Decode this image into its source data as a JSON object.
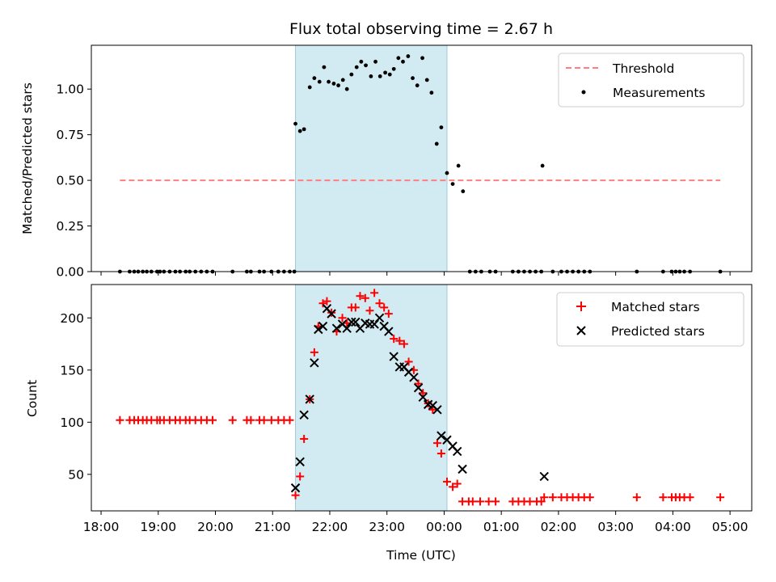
{
  "chart_data": [
    {
      "type": "scatter",
      "title": "Flux total observing time = 2.67 h",
      "xlabel": "",
      "ylabel": "Matched/Predicted stars",
      "x_ticks": [
        "18:00",
        "19:00",
        "20:00",
        "21:00",
        "22:00",
        "23:00",
        "00:00",
        "01:00",
        "02:00",
        "03:00",
        "04:00",
        "05:00"
      ],
      "y_ticks": [
        "0.00",
        "0.25",
        "0.50",
        "0.75",
        "1.00"
      ],
      "ylim": [
        0,
        1.24
      ],
      "xlim_hours": [
        17.83,
        29.38
      ],
      "grid": false,
      "legend_position": "top-right",
      "shaded_interval": [
        21.4,
        24.05
      ],
      "shade_color": "#add8e6",
      "threshold": {
        "name": "Threshold",
        "value": 0.5,
        "x_range": [
          18.33,
          28.83
        ],
        "color": "#ff7f7f"
      },
      "series": [
        {
          "name": "Measurements",
          "color": "#000000",
          "points": [
            [
              18.33,
              0
            ],
            [
              18.5,
              0
            ],
            [
              18.58,
              0
            ],
            [
              18.65,
              0
            ],
            [
              18.73,
              0
            ],
            [
              18.8,
              0
            ],
            [
              18.88,
              0
            ],
            [
              18.98,
              0
            ],
            [
              19.03,
              0
            ],
            [
              19.1,
              0
            ],
            [
              19.2,
              0
            ],
            [
              19.3,
              0
            ],
            [
              19.38,
              0
            ],
            [
              19.48,
              0
            ],
            [
              19.55,
              0
            ],
            [
              19.65,
              0
            ],
            [
              19.75,
              0
            ],
            [
              19.85,
              0
            ],
            [
              19.95,
              0
            ],
            [
              20.3,
              0
            ],
            [
              20.55,
              0
            ],
            [
              20.62,
              0
            ],
            [
              20.77,
              0
            ],
            [
              20.85,
              0
            ],
            [
              20.98,
              0
            ],
            [
              21.1,
              0
            ],
            [
              21.2,
              0
            ],
            [
              21.3,
              0
            ],
            [
              21.38,
              0
            ],
            [
              21.4,
              0.81
            ],
            [
              21.48,
              0.77
            ],
            [
              21.55,
              0.78
            ],
            [
              21.65,
              1.01
            ],
            [
              21.73,
              1.06
            ],
            [
              21.82,
              1.04
            ],
            [
              21.9,
              1.12
            ],
            [
              21.98,
              1.04
            ],
            [
              22.07,
              1.03
            ],
            [
              22.15,
              1.02
            ],
            [
              22.23,
              1.05
            ],
            [
              22.3,
              1.0
            ],
            [
              22.38,
              1.08
            ],
            [
              22.47,
              1.12
            ],
            [
              22.55,
              1.15
            ],
            [
              22.63,
              1.13
            ],
            [
              22.72,
              1.07
            ],
            [
              22.8,
              1.15
            ],
            [
              22.88,
              1.07
            ],
            [
              22.97,
              1.09
            ],
            [
              23.05,
              1.08
            ],
            [
              23.12,
              1.11
            ],
            [
              23.2,
              1.17
            ],
            [
              23.28,
              1.15
            ],
            [
              23.37,
              1.18
            ],
            [
              23.45,
              1.06
            ],
            [
              23.53,
              1.02
            ],
            [
              23.62,
              1.17
            ],
            [
              23.7,
              1.05
            ],
            [
              23.78,
              0.98
            ],
            [
              23.87,
              0.7
            ],
            [
              23.95,
              0.79
            ],
            [
              24.05,
              0.54
            ],
            [
              24.15,
              0.48
            ],
            [
              24.25,
              0.58
            ],
            [
              24.33,
              0.44
            ],
            [
              24.45,
              0
            ],
            [
              24.55,
              0
            ],
            [
              24.65,
              0
            ],
            [
              24.8,
              0
            ],
            [
              24.9,
              0
            ],
            [
              25.2,
              0
            ],
            [
              25.3,
              0
            ],
            [
              25.4,
              0
            ],
            [
              25.5,
              0
            ],
            [
              25.6,
              0
            ],
            [
              25.7,
              0
            ],
            [
              25.72,
              0.58
            ],
            [
              25.9,
              0
            ],
            [
              26.05,
              0
            ],
            [
              26.15,
              0
            ],
            [
              26.25,
              0
            ],
            [
              26.35,
              0
            ],
            [
              26.45,
              0
            ],
            [
              26.55,
              0
            ],
            [
              27.37,
              0
            ],
            [
              27.83,
              0
            ],
            [
              27.98,
              0
            ],
            [
              28.05,
              0
            ],
            [
              28.12,
              0
            ],
            [
              28.2,
              0
            ],
            [
              28.3,
              0
            ],
            [
              28.83,
              0
            ]
          ]
        }
      ]
    },
    {
      "type": "scatter",
      "title": "",
      "xlabel": "Time (UTC)",
      "ylabel": "Count",
      "x_ticks": [
        "18:00",
        "19:00",
        "20:00",
        "21:00",
        "22:00",
        "23:00",
        "00:00",
        "01:00",
        "02:00",
        "03:00",
        "04:00",
        "05:00"
      ],
      "y_ticks": [
        "50",
        "100",
        "150",
        "200"
      ],
      "ylim": [
        15,
        232
      ],
      "xlim_hours": [
        17.83,
        29.38
      ],
      "grid": false,
      "legend_position": "top-right",
      "shaded_interval": [
        21.4,
        24.05
      ],
      "shade_color": "#add8e6",
      "series": [
        {
          "name": "Matched stars",
          "marker": "plus",
          "color": "#ff0000",
          "points": [
            [
              18.33,
              102
            ],
            [
              18.5,
              102
            ],
            [
              18.58,
              102
            ],
            [
              18.65,
              102
            ],
            [
              18.73,
              102
            ],
            [
              18.8,
              102
            ],
            [
              18.88,
              102
            ],
            [
              18.98,
              102
            ],
            [
              19.03,
              102
            ],
            [
              19.1,
              102
            ],
            [
              19.2,
              102
            ],
            [
              19.3,
              102
            ],
            [
              19.38,
              102
            ],
            [
              19.48,
              102
            ],
            [
              19.55,
              102
            ],
            [
              19.65,
              102
            ],
            [
              19.75,
              102
            ],
            [
              19.85,
              102
            ],
            [
              19.95,
              102
            ],
            [
              20.3,
              102
            ],
            [
              20.55,
              102
            ],
            [
              20.62,
              102
            ],
            [
              20.77,
              102
            ],
            [
              20.85,
              102
            ],
            [
              20.98,
              102
            ],
            [
              21.1,
              102
            ],
            [
              21.2,
              102
            ],
            [
              21.3,
              102
            ],
            [
              21.4,
              30
            ],
            [
              21.48,
              48
            ],
            [
              21.55,
              84
            ],
            [
              21.65,
              122
            ],
            [
              21.73,
              167
            ],
            [
              21.8,
              192
            ],
            [
              21.88,
              214
            ],
            [
              21.95,
              216
            ],
            [
              22.03,
              205
            ],
            [
              22.12,
              187
            ],
            [
              22.22,
              200
            ],
            [
              22.3,
              195
            ],
            [
              22.38,
              210
            ],
            [
              22.45,
              210
            ],
            [
              22.53,
              221
            ],
            [
              22.62,
              219
            ],
            [
              22.7,
              207
            ],
            [
              22.78,
              224
            ],
            [
              22.87,
              214
            ],
            [
              22.95,
              210
            ],
            [
              23.03,
              204
            ],
            [
              23.12,
              180
            ],
            [
              23.22,
              178
            ],
            [
              23.3,
              175
            ],
            [
              23.38,
              158
            ],
            [
              23.47,
              150
            ],
            [
              23.55,
              137
            ],
            [
              23.63,
              128
            ],
            [
              23.72,
              118
            ],
            [
              23.8,
              112
            ],
            [
              23.88,
              80
            ],
            [
              23.95,
              70
            ],
            [
              24.05,
              43
            ],
            [
              24.15,
              38
            ],
            [
              24.23,
              41
            ],
            [
              24.32,
              24
            ],
            [
              24.43,
              24
            ],
            [
              24.5,
              24
            ],
            [
              24.63,
              24
            ],
            [
              24.78,
              24
            ],
            [
              24.9,
              24
            ],
            [
              25.2,
              24
            ],
            [
              25.3,
              24
            ],
            [
              25.4,
              24
            ],
            [
              25.5,
              24
            ],
            [
              25.62,
              24
            ],
            [
              25.7,
              24
            ],
            [
              25.75,
              28
            ],
            [
              25.9,
              28
            ],
            [
              26.05,
              28
            ],
            [
              26.15,
              28
            ],
            [
              26.25,
              28
            ],
            [
              26.35,
              28
            ],
            [
              26.45,
              28
            ],
            [
              26.55,
              28
            ],
            [
              27.37,
              28
            ],
            [
              27.83,
              28
            ],
            [
              27.98,
              28
            ],
            [
              28.05,
              28
            ],
            [
              28.12,
              28
            ],
            [
              28.2,
              28
            ],
            [
              28.3,
              28
            ],
            [
              28.83,
              28
            ]
          ]
        },
        {
          "name": "Predicted stars",
          "marker": "x",
          "color": "#000000",
          "points": [
            [
              21.4,
              37
            ],
            [
              21.48,
              62
            ],
            [
              21.55,
              107
            ],
            [
              21.65,
              122
            ],
            [
              21.73,
              157
            ],
            [
              21.8,
              189
            ],
            [
              21.88,
              192
            ],
            [
              21.95,
              209
            ],
            [
              22.03,
              204
            ],
            [
              22.12,
              190
            ],
            [
              22.22,
              194
            ],
            [
              22.3,
              190
            ],
            [
              22.38,
              196
            ],
            [
              22.45,
              196
            ],
            [
              22.53,
              190
            ],
            [
              22.62,
              195
            ],
            [
              22.7,
              194
            ],
            [
              22.78,
              194
            ],
            [
              22.87,
              200
            ],
            [
              22.95,
              192
            ],
            [
              23.03,
              187
            ],
            [
              23.12,
              163
            ],
            [
              23.22,
              153
            ],
            [
              23.3,
              153
            ],
            [
              23.38,
              148
            ],
            [
              23.47,
              143
            ],
            [
              23.55,
              133
            ],
            [
              23.63,
              124
            ],
            [
              23.72,
              117
            ],
            [
              23.8,
              116
            ],
            [
              23.88,
              112
            ],
            [
              23.95,
              87
            ],
            [
              24.05,
              83
            ],
            [
              24.15,
              77
            ],
            [
              24.23,
              72
            ],
            [
              24.32,
              55
            ],
            [
              25.75,
              48
            ]
          ]
        }
      ]
    }
  ]
}
